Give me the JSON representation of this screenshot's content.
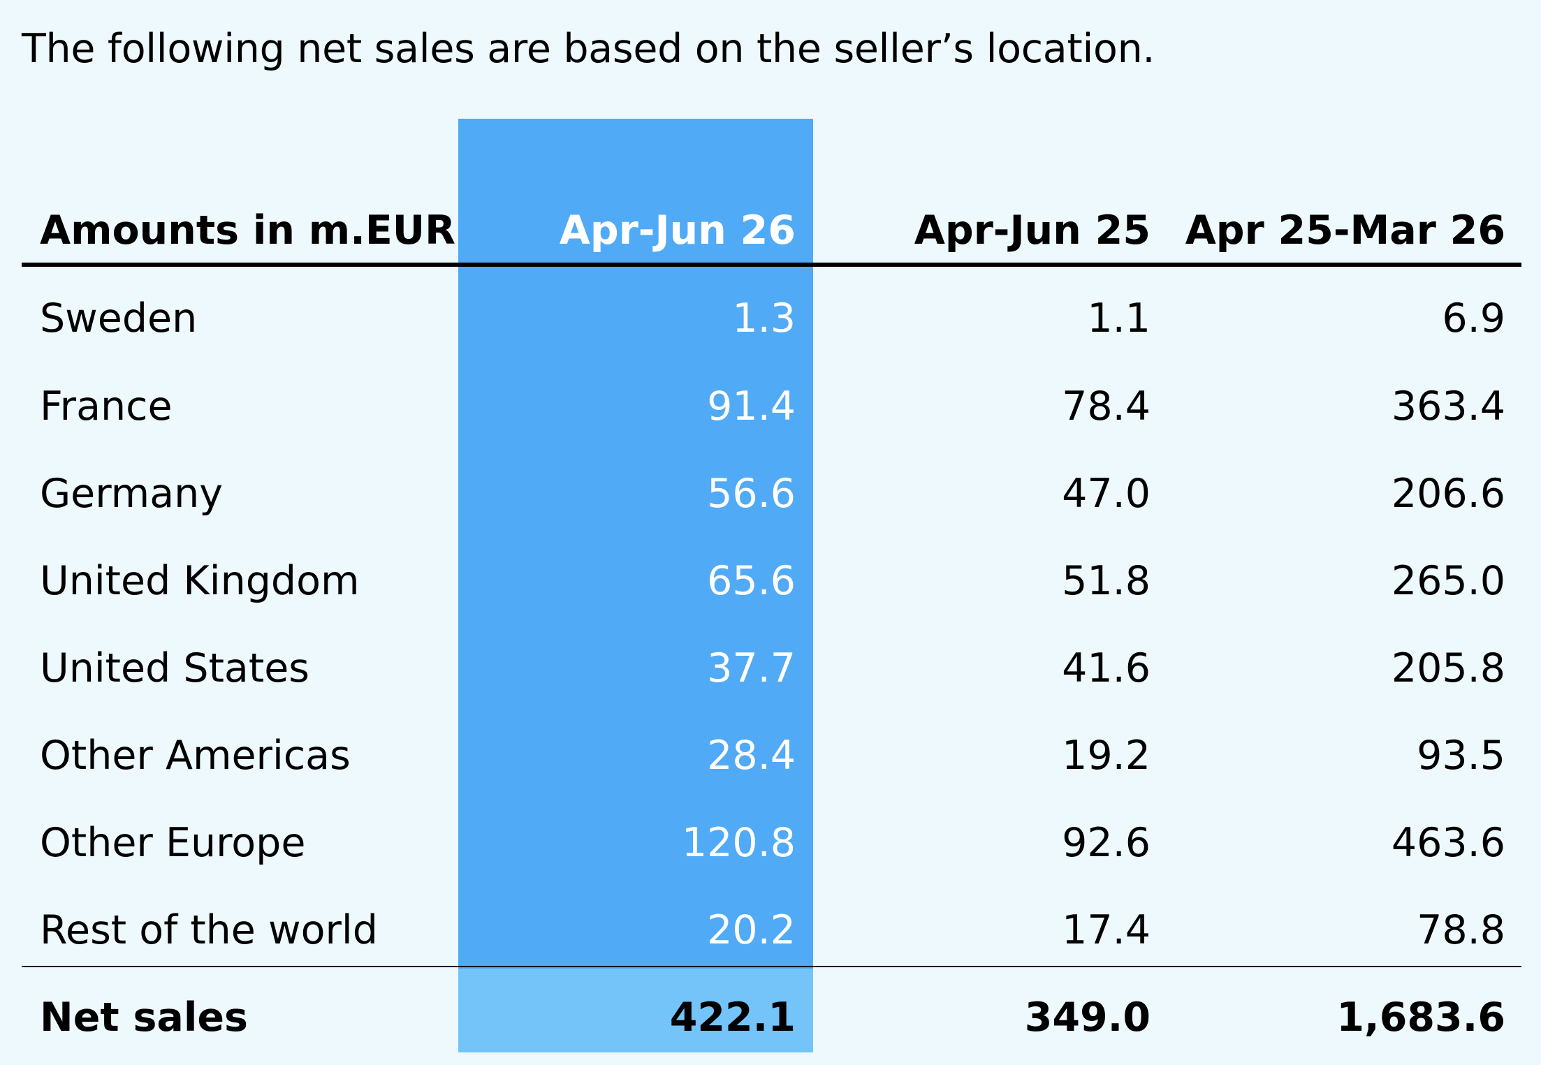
{
  "intro_text": "The following net sales are based on the seller’s location.",
  "colors": {
    "background": "#eef9fd",
    "highlight_column": "#50aaf6",
    "highlight_total": "#74c4fa"
  },
  "table": {
    "headers": {
      "label": "Amounts in m.EUR",
      "col1": "Apr-Jun 26",
      "col2": "Apr-Jun 25",
      "col3": "Apr 25-Mar 26"
    },
    "rows": [
      {
        "label": "Sweden",
        "col1": "1.3",
        "col2": "1.1",
        "col3": "6.9"
      },
      {
        "label": "France",
        "col1": "91.4",
        "col2": "78.4",
        "col3": "363.4"
      },
      {
        "label": "Germany",
        "col1": "56.6",
        "col2": "47.0",
        "col3": "206.6"
      },
      {
        "label": "United Kingdom",
        "col1": "65.6",
        "col2": "51.8",
        "col3": "265.0"
      },
      {
        "label": "United States",
        "col1": "37.7",
        "col2": "41.6",
        "col3": "205.8"
      },
      {
        "label": "Other Americas",
        "col1": "28.4",
        "col2": "19.2",
        "col3": "93.5"
      },
      {
        "label": "Other Europe",
        "col1": "120.8",
        "col2": "92.6",
        "col3": "463.6"
      },
      {
        "label": "Rest of the world",
        "col1": "20.2",
        "col2": "17.4",
        "col3": "78.8"
      }
    ],
    "total": {
      "label": "Net sales",
      "col1": "422.1",
      "col2": "349.0",
      "col3": "1,683.6"
    }
  }
}
